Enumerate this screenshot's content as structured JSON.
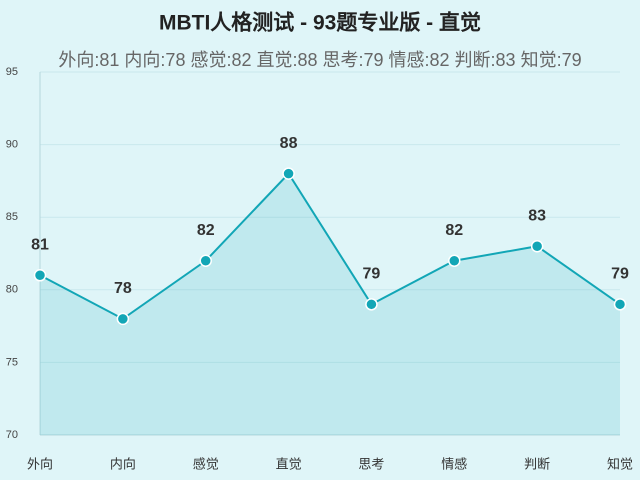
{
  "chart_data": {
    "type": "line",
    "title": "MBTI人格测试 - 93题专业版 - 直觉",
    "subtitle": "外向:81 内向:78 感觉:82 直觉:88 思考:79 情感:82 判断:83 知觉:79",
    "categories": [
      "外向",
      "内向",
      "感觉",
      "直觉",
      "思考",
      "情感",
      "判断",
      "知觉"
    ],
    "values": [
      81,
      78,
      82,
      88,
      79,
      82,
      83,
      79
    ],
    "color": "#12a6b6",
    "ylim": [
      70,
      95
    ],
    "yticks": [
      70,
      75,
      80,
      85,
      90,
      95
    ],
    "grid": true
  }
}
